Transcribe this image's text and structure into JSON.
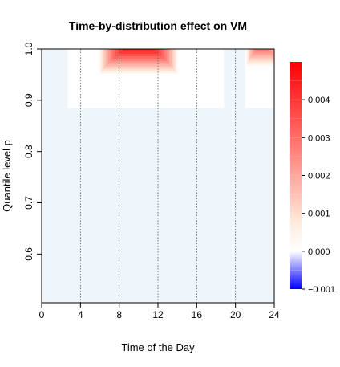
{
  "chart_data": {
    "type": "heatmap",
    "title": "Time-by-distribution effect on VM",
    "xlabel": "Time of the Day",
    "ylabel": "Quantile level p",
    "xlim": [
      0,
      24
    ],
    "ylim": [
      0.505,
      1.0
    ],
    "x_ticks": [
      "0",
      "4",
      "8",
      "12",
      "16",
      "20",
      "24"
    ],
    "x_tick_values": [
      0,
      4,
      8,
      12,
      16,
      20,
      24
    ],
    "y_ticks": [
      "0.6",
      "0.7",
      "0.8",
      "0.9",
      "1.0"
    ],
    "y_tick_values": [
      0.6,
      0.7,
      0.8,
      0.9,
      1.0
    ],
    "vertical_reference_lines": [
      4,
      8,
      12,
      16,
      20
    ],
    "colorbar": {
      "min": -0.001,
      "max": 0.005,
      "ticks": [
        "0.004",
        "0.003",
        "0.002",
        "0.001",
        "0.000",
        "−0.001"
      ],
      "tick_values": [
        0.004,
        0.003,
        0.002,
        0.001,
        0.0,
        -0.001
      ],
      "colors": {
        "negative": "#0000ff",
        "zero": "#ffffff",
        "positive": "#ff0000",
        "slight_negative": "#eef6fb"
      }
    },
    "regions": [
      {
        "x": [
          0,
          2.7
        ],
        "y": [
          0.505,
          1.0
        ],
        "value": -0.0001
      },
      {
        "x": [
          2.7,
          18.8
        ],
        "y": [
          0.505,
          0.885
        ],
        "value": -0.0001
      },
      {
        "x": [
          18.8,
          21.0
        ],
        "y": [
          0.505,
          1.0
        ],
        "value": -0.0001
      },
      {
        "x": [
          21.0,
          24
        ],
        "y": [
          0.505,
          0.885
        ],
        "value": -0.0001
      },
      {
        "x": [
          2.7,
          18.8
        ],
        "y": [
          0.885,
          1.0
        ],
        "value": 0.0
      },
      {
        "x": [
          21.0,
          24
        ],
        "y": [
          0.885,
          1.0
        ],
        "value": 0.0
      }
    ],
    "hotspots": [
      {
        "x_center": 10.0,
        "x_halfwidth": 4.0,
        "y_top": 1.0,
        "y_extent": 0.048,
        "peak": 0.0048
      },
      {
        "x_center": 22.8,
        "x_halfwidth": 1.7,
        "y_top": 1.0,
        "y_extent": 0.033,
        "peak": 0.003
      }
    ]
  }
}
